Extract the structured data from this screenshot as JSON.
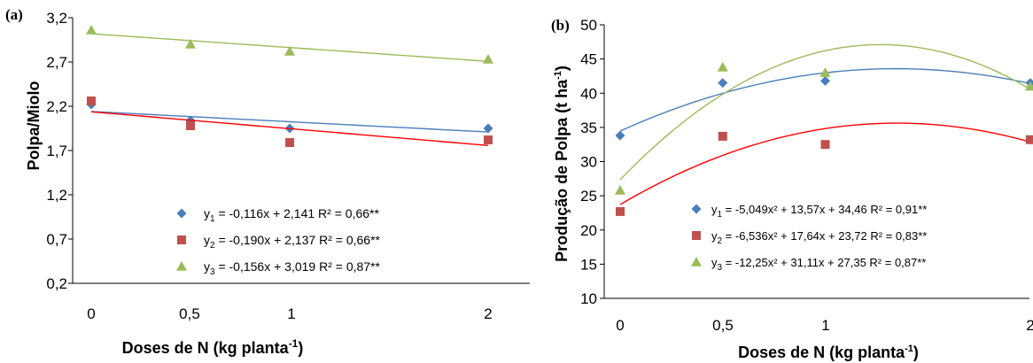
{
  "chart_data": [
    {
      "panel_label": "(a)",
      "type": "scatter",
      "xlabel": "Doses de N (kg planta",
      "xlabel_sup": "-1",
      "xlabel_tail": ")",
      "ylabel": "Polpa/Miolo",
      "x_ticks": [
        "0",
        "0,5",
        "1",
        "2"
      ],
      "x_tick_values": [
        0,
        0.5,
        1,
        2
      ],
      "y_ticks": [
        "0,2",
        "0,7",
        "1,2",
        "1,7",
        "2,2",
        "2,7",
        "3,2"
      ],
      "xlim": [
        0,
        2
      ],
      "ylim": [
        0.2,
        3.2
      ],
      "grid": false,
      "legend_position": "bottom-right",
      "series": [
        {
          "color": "#4a7ebb",
          "marker": "diamond",
          "line_color": "#4a7ebb",
          "x": [
            0,
            0.5,
            1,
            2
          ],
          "y": [
            2.22,
            2.04,
            1.95,
            1.95
          ],
          "fit": {
            "type": "linear",
            "coef": [
              2.141,
              -0.116
            ]
          },
          "legend": {
            "y": "y",
            "sub": "1",
            "eq": " = -0,116x  + 2,141  R² = 0,66**"
          }
        },
        {
          "color": "#c0504d",
          "marker": "square",
          "line_color": "#ff0000",
          "x": [
            0,
            0.5,
            1,
            2
          ],
          "y": [
            2.26,
            1.98,
            1.79,
            1.82
          ],
          "fit": {
            "type": "linear",
            "coef": [
              2.137,
              -0.19
            ]
          },
          "legend": {
            "y": "y",
            "sub": "2",
            "eq": " = -0,190x  + 2,137  R² = 0,66**"
          }
        },
        {
          "color": "#9bbb59",
          "marker": "triangle",
          "line_color": "#9bbb59",
          "x": [
            0,
            0.5,
            1,
            2
          ],
          "y": [
            3.06,
            2.9,
            2.82,
            2.73
          ],
          "fit": {
            "type": "linear",
            "coef": [
              3.019,
              -0.156
            ]
          },
          "legend": {
            "y": "y",
            "sub": "3",
            "eq": " = -0,156x  + 3,019  R² = 0,87**"
          }
        }
      ]
    },
    {
      "panel_label": "(b)",
      "type": "scatter",
      "xlabel": "Doses de N (kg planta",
      "xlabel_sup": "-1",
      "xlabel_tail": ")",
      "ylabel": "Produção de Polpa (t ha",
      "ylabel_sup": "-1",
      "ylabel_tail": ")",
      "x_ticks": [
        "0",
        "0,5",
        "1",
        "2"
      ],
      "x_tick_values": [
        0,
        0.5,
        1,
        2
      ],
      "y_ticks": [
        "10",
        "15",
        "20",
        "25",
        "30",
        "35",
        "40",
        "45",
        "50"
      ],
      "xlim": [
        0,
        2
      ],
      "ylim": [
        10,
        50
      ],
      "grid": false,
      "legend_position": "bottom-right",
      "series": [
        {
          "color": "#4a7ebb",
          "marker": "diamond",
          "line_color": "#4a7ebb",
          "x": [
            0,
            0.5,
            1,
            2
          ],
          "y": [
            33.8,
            41.5,
            41.8,
            41.5
          ],
          "fit": {
            "type": "quadratic",
            "coef": [
              34.46,
              13.57,
              -5.049
            ]
          },
          "legend": {
            "y": "y",
            "sub": "1",
            "eq": " = -5,049x² + 13,57x + 34,46  R² = 0,91**"
          }
        },
        {
          "color": "#c0504d",
          "marker": "square",
          "line_color": "#ff0000",
          "x": [
            0,
            0.5,
            1,
            2
          ],
          "y": [
            22.7,
            33.7,
            32.5,
            33.2
          ],
          "fit": {
            "type": "quadratic",
            "coef": [
              23.72,
              17.64,
              -6.536
            ]
          },
          "legend": {
            "y": "y",
            "sub": "2",
            "eq": " = -6,536x² + 17,64x + 23,72  R² = 0,83**"
          }
        },
        {
          "color": "#9bbb59",
          "marker": "triangle",
          "line_color": "#9bbb59",
          "x": [
            0,
            0.5,
            1,
            2
          ],
          "y": [
            25.8,
            43.8,
            43.0,
            41.0
          ],
          "fit": {
            "type": "quadratic",
            "coef": [
              27.35,
              31.11,
              -12.25
            ]
          },
          "legend": {
            "y": "y",
            "sub": "3",
            "eq": " = -12,25x² + 31,11x + 27,35  R² = 0,87**"
          }
        }
      ]
    }
  ]
}
